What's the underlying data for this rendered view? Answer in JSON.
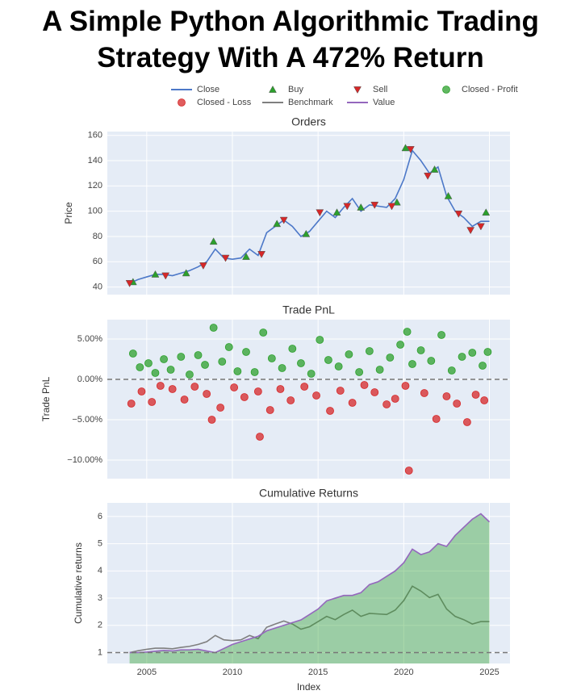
{
  "title": "A Simple Python Algorithmic Trading Strategy With A 472% Return",
  "chart_data": [
    {
      "type": "line",
      "title": "Orders",
      "ylabel": "Price",
      "xlim": [
        2002.7,
        2026.2
      ],
      "xticks": [
        2005,
        2010,
        2015,
        2020,
        2025
      ],
      "show_x_tick_labels": false,
      "ylim": [
        34,
        163
      ],
      "yticks": [
        40,
        60,
        80,
        100,
        120,
        140,
        160
      ],
      "grid": true,
      "series": [
        {
          "name": "Close",
          "color": "#4c78c8",
          "mode": "lines",
          "x": [
            2004,
            2004.5,
            2005,
            2005.5,
            2006,
            2006.5,
            2007,
            2007.5,
            2008,
            2008.5,
            2009,
            2009.5,
            2010,
            2010.5,
            2011,
            2011.5,
            2012,
            2012.5,
            2013,
            2013.5,
            2014,
            2014.5,
            2015,
            2015.5,
            2016,
            2016.5,
            2017,
            2017.5,
            2018,
            2018.5,
            2019,
            2019.5,
            2020,
            2020.5,
            2021,
            2021.5,
            2022,
            2022.5,
            2023,
            2023.5,
            2024,
            2024.5,
            2025
          ],
          "values": [
            43,
            46,
            48,
            50,
            50,
            49,
            51,
            53,
            56,
            60,
            70,
            63,
            62,
            63,
            70,
            65,
            83,
            88,
            93,
            88,
            80,
            84,
            92,
            100,
            95,
            103,
            110,
            100,
            105,
            104,
            103,
            110,
            125,
            148,
            140,
            130,
            135,
            112,
            100,
            95,
            88,
            92,
            92
          ]
        },
        {
          "name": "Buy",
          "color": "#2ca02c",
          "mode": "markers",
          "marker": "triangle-up",
          "x": [
            2004.2,
            2005.5,
            2007.3,
            2008.9,
            2010.8,
            2012.6,
            2014.3,
            2016.1,
            2017.5,
            2019.6,
            2020.1,
            2021.8,
            2022.6,
            2024.8
          ],
          "values": [
            44,
            50,
            51,
            76,
            64,
            90,
            82,
            99,
            103,
            107,
            150,
            133,
            112,
            99
          ]
        },
        {
          "name": "Sell",
          "color": "#d62728",
          "mode": "markers",
          "marker": "triangle-down",
          "x": [
            2004.0,
            2006.1,
            2008.3,
            2009.6,
            2011.7,
            2013.0,
            2015.1,
            2016.7,
            2018.3,
            2019.3,
            2020.4,
            2021.4,
            2023.2,
            2023.9,
            2024.5
          ],
          "values": [
            43,
            49,
            57,
            63,
            66,
            93,
            99,
            104,
            105,
            104,
            149,
            128,
            98,
            85,
            88
          ]
        }
      ]
    },
    {
      "type": "scatter",
      "title": "Trade PnL",
      "ylabel": "Trade PnL",
      "xlim": [
        2002.7,
        2026.2
      ],
      "xticks": [
        2005,
        2010,
        2015,
        2020,
        2025
      ],
      "show_x_tick_labels": false,
      "ylim": [
        -12.3,
        7.4
      ],
      "yticks": [
        {
          "value": -10,
          "label": "−10.00%"
        },
        {
          "value": -5,
          "label": "−5.00%"
        },
        {
          "value": 0,
          "label": "0.00%"
        },
        {
          "value": 5,
          "label": "5.00%"
        }
      ],
      "grid": true,
      "hline": 0,
      "series": [
        {
          "name": "Closed - Profit",
          "color": "#2ca02c",
          "mode": "markers",
          "marker": "circle",
          "x": [
            2004.2,
            2004.6,
            2005.1,
            2005.5,
            2006.0,
            2006.4,
            2007.0,
            2007.5,
            2008.0,
            2008.4,
            2008.9,
            2009.4,
            2009.8,
            2010.3,
            2010.8,
            2011.3,
            2011.8,
            2012.3,
            2012.9,
            2013.5,
            2014.0,
            2014.6,
            2015.1,
            2015.6,
            2016.2,
            2016.8,
            2017.4,
            2018.0,
            2018.6,
            2019.2,
            2019.8,
            2020.2,
            2020.5,
            2021.0,
            2021.6,
            2022.2,
            2022.8,
            2023.4,
            2024.0,
            2024.6,
            2024.9
          ],
          "values": [
            3.2,
            1.5,
            2.0,
            0.8,
            2.5,
            1.2,
            2.8,
            0.6,
            3.0,
            1.8,
            6.4,
            2.2,
            4.0,
            1.0,
            3.4,
            0.9,
            5.8,
            2.6,
            1.4,
            3.8,
            2.0,
            0.7,
            4.9,
            2.4,
            1.6,
            3.1,
            0.9,
            3.5,
            1.2,
            2.7,
            4.3,
            5.9,
            1.9,
            3.6,
            2.3,
            5.5,
            1.1,
            2.8,
            3.3,
            1.7,
            3.4
          ]
        },
        {
          "name": "Closed - Loss",
          "color": "#d62728",
          "mode": "markers",
          "marker": "circle",
          "x": [
            2004.1,
            2004.7,
            2005.3,
            2005.8,
            2006.5,
            2007.2,
            2007.8,
            2008.5,
            2008.8,
            2009.3,
            2010.1,
            2010.7,
            2011.5,
            2011.6,
            2012.2,
            2012.8,
            2013.4,
            2014.2,
            2014.9,
            2015.7,
            2016.3,
            2017.0,
            2017.7,
            2018.3,
            2019.0,
            2019.5,
            2020.1,
            2020.3,
            2021.2,
            2021.9,
            2022.5,
            2023.1,
            2023.7,
            2024.2,
            2024.7
          ],
          "values": [
            -3.0,
            -1.5,
            -2.8,
            -0.8,
            -1.2,
            -2.5,
            -0.9,
            -1.8,
            -5.0,
            -3.5,
            -1.0,
            -2.2,
            -1.5,
            -7.1,
            -3.8,
            -1.2,
            -2.6,
            -0.9,
            -2.0,
            -3.9,
            -1.4,
            -2.9,
            -0.7,
            -1.6,
            -3.1,
            -2.4,
            -0.8,
            -11.3,
            -1.7,
            -4.9,
            -2.1,
            -3.0,
            -5.3,
            -1.9,
            -2.6
          ]
        }
      ]
    },
    {
      "type": "area",
      "title": "Cumulative Returns",
      "ylabel": "Cumulative returns",
      "xlabel": "Index",
      "xlim": [
        2002.7,
        2026.2
      ],
      "xticks": [
        2005,
        2010,
        2015,
        2020,
        2025
      ],
      "show_x_tick_labels": true,
      "ylim": [
        0.6,
        6.5
      ],
      "yticks": [
        1,
        2,
        3,
        4,
        5,
        6
      ],
      "grid": true,
      "hline": 1,
      "series": [
        {
          "name": "Benchmark",
          "color": "#7f7f7f",
          "mode": "lines",
          "x": [
            2004,
            2004.5,
            2005,
            2005.5,
            2006,
            2006.5,
            2007,
            2007.5,
            2008,
            2008.5,
            2009,
            2009.5,
            2010,
            2010.5,
            2011,
            2011.5,
            2012,
            2012.5,
            2013,
            2013.5,
            2014,
            2014.5,
            2015,
            2015.5,
            2016,
            2016.5,
            2017,
            2017.5,
            2018,
            2018.5,
            2019,
            2019.5,
            2020,
            2020.5,
            2021,
            2021.5,
            2022,
            2022.5,
            2023,
            2023.5,
            2024,
            2024.5,
            2025
          ],
          "values": [
            1,
            1.07,
            1.12,
            1.16,
            1.16,
            1.14,
            1.19,
            1.23,
            1.3,
            1.4,
            1.63,
            1.47,
            1.44,
            1.47,
            1.63,
            1.51,
            1.93,
            2.05,
            2.16,
            2.05,
            1.86,
            1.95,
            2.14,
            2.33,
            2.21,
            2.4,
            2.56,
            2.33,
            2.44,
            2.42,
            2.4,
            2.56,
            2.91,
            3.44,
            3.26,
            3.02,
            3.14,
            2.6,
            2.33,
            2.21,
            2.05,
            2.14,
            2.14
          ]
        },
        {
          "name": "Value",
          "color": "#9467bd",
          "mode": "lines",
          "fill": true,
          "fill_color": "rgba(44,160,44,0.4)",
          "x": [
            2004,
            2004.5,
            2005,
            2005.5,
            2006,
            2006.5,
            2007,
            2007.5,
            2008,
            2008.5,
            2009,
            2009.5,
            2010,
            2010.5,
            2011,
            2011.5,
            2012,
            2012.5,
            2013,
            2013.5,
            2014,
            2014.5,
            2015,
            2015.5,
            2016,
            2016.5,
            2017,
            2017.5,
            2018,
            2018.5,
            2019,
            2019.5,
            2020,
            2020.5,
            2021,
            2021.5,
            2022,
            2022.5,
            2023,
            2023.5,
            2024,
            2024.5,
            2025
          ],
          "values": [
            1,
            1,
            1.02,
            1.05,
            1.08,
            1.06,
            1.1,
            1.1,
            1.12,
            1.06,
            1.0,
            1.15,
            1.3,
            1.4,
            1.5,
            1.6,
            1.8,
            1.9,
            2.0,
            2.1,
            2.2,
            2.4,
            2.6,
            2.9,
            3.0,
            3.1,
            3.1,
            3.2,
            3.5,
            3.6,
            3.8,
            4.0,
            4.3,
            4.8,
            4.6,
            4.7,
            5.0,
            4.9,
            5.3,
            5.6,
            5.9,
            6.1,
            5.8
          ]
        }
      ]
    }
  ]
}
